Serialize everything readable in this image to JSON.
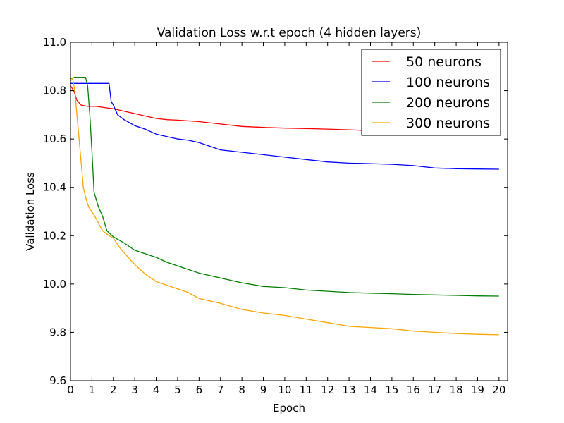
{
  "chart_data": {
    "type": "line",
    "title": "Validation Loss w.r.t epoch (4 hidden layers)",
    "xlabel": "Epoch",
    "ylabel": "Validation Loss",
    "xlim": [
      0,
      20.4
    ],
    "ylim": [
      9.6,
      11.0
    ],
    "xticks": [
      0,
      1,
      2,
      3,
      4,
      5,
      6,
      7,
      8,
      9,
      10,
      11,
      12,
      13,
      14,
      15,
      16,
      17,
      18,
      19,
      20
    ],
    "xtick_labels": [
      "0",
      "1",
      "2",
      "3",
      "4",
      "5",
      "6",
      "7",
      "8",
      "9",
      "10",
      "11",
      "12",
      "13",
      "14",
      "15",
      "16",
      "17",
      "18",
      "19",
      "20"
    ],
    "yticks": [
      9.6,
      9.8,
      10.0,
      10.2,
      10.4,
      10.6,
      10.8,
      11.0
    ],
    "ytick_labels": [
      "9.6",
      "9.8",
      "10.0",
      "10.2",
      "10.4",
      "10.6",
      "10.8",
      "11.0"
    ],
    "grid": false,
    "legend_position": "top-right",
    "series": [
      {
        "name": "50 neurons",
        "color": "#ff0000",
        "x": [
          0,
          0.15,
          0.3,
          0.5,
          0.8,
          1.2,
          1.6,
          2.0,
          2.5,
          3.0,
          3.5,
          4.0,
          4.5,
          5.0,
          6.0,
          7.0,
          8.0,
          9.0,
          10.0,
          11.0,
          12.0,
          13.0,
          13.6
        ],
        "values": [
          10.82,
          10.8,
          10.76,
          10.74,
          10.735,
          10.735,
          10.73,
          10.725,
          10.715,
          10.705,
          10.695,
          10.685,
          10.68,
          10.678,
          10.672,
          10.662,
          10.652,
          10.648,
          10.645,
          10.643,
          10.641,
          10.638,
          10.636
        ]
      },
      {
        "name": "100 neurons",
        "color": "#0000ff",
        "x": [
          0,
          0.5,
          1.0,
          1.5,
          1.8,
          1.9,
          2.0,
          2.2,
          2.5,
          3.0,
          3.5,
          4.0,
          4.5,
          5.0,
          5.5,
          6.0,
          6.5,
          7.0,
          8.0,
          9.0,
          10.0,
          11.0,
          12.0,
          13.0,
          14.0,
          15.0,
          16.0,
          17.0,
          18.0,
          19.0,
          20.0
        ],
        "values": [
          10.83,
          10.83,
          10.83,
          10.83,
          10.83,
          10.755,
          10.74,
          10.7,
          10.68,
          10.655,
          10.64,
          10.62,
          10.61,
          10.6,
          10.595,
          10.585,
          10.57,
          10.555,
          10.545,
          10.535,
          10.525,
          10.515,
          10.505,
          10.5,
          10.498,
          10.495,
          10.49,
          10.48,
          10.477,
          10.476,
          10.475
        ]
      },
      {
        "name": "200 neurons",
        "color": "#008000",
        "x": [
          0,
          0.2,
          0.5,
          0.7,
          0.8,
          0.9,
          1.0,
          1.1,
          1.3,
          1.5,
          1.7,
          2.0,
          2.5,
          3.0,
          3.5,
          4.0,
          4.5,
          5.0,
          5.5,
          6.0,
          7.0,
          8.0,
          9.0,
          10.0,
          11.0,
          12.0,
          13.0,
          14.0,
          15.0,
          16.0,
          17.0,
          18.0,
          19.0,
          20.0
        ],
        "values": [
          10.85,
          10.855,
          10.855,
          10.855,
          10.82,
          10.7,
          10.55,
          10.38,
          10.32,
          10.28,
          10.22,
          10.195,
          10.17,
          10.14,
          10.125,
          10.11,
          10.09,
          10.075,
          10.06,
          10.045,
          10.025,
          10.005,
          9.99,
          9.985,
          9.975,
          9.97,
          9.965,
          9.962,
          9.96,
          9.957,
          9.955,
          9.953,
          9.951,
          9.95
        ]
      },
      {
        "name": "300 neurons",
        "color": "#ffa500",
        "x": [
          0,
          0.1,
          0.2,
          0.3,
          0.4,
          0.5,
          0.6,
          0.7,
          0.8,
          0.9,
          1.0,
          1.2,
          1.5,
          1.8,
          2.0,
          2.3,
          2.6,
          3.0,
          3.5,
          4.0,
          4.5,
          5.0,
          5.5,
          6.0,
          7.0,
          8.0,
          9.0,
          10.0,
          11.0,
          12.0,
          13.0,
          14.0,
          15.0,
          16.0,
          17.0,
          18.0,
          19.0,
          20.0
        ],
        "values": [
          10.84,
          10.85,
          10.8,
          10.7,
          10.6,
          10.5,
          10.4,
          10.36,
          10.33,
          10.31,
          10.3,
          10.27,
          10.22,
          10.2,
          10.19,
          10.15,
          10.12,
          10.08,
          10.04,
          10.01,
          9.995,
          9.98,
          9.965,
          9.94,
          9.92,
          9.895,
          9.88,
          9.87,
          9.855,
          9.84,
          9.825,
          9.82,
          9.815,
          9.805,
          9.8,
          9.795,
          9.792,
          9.79
        ]
      }
    ]
  }
}
